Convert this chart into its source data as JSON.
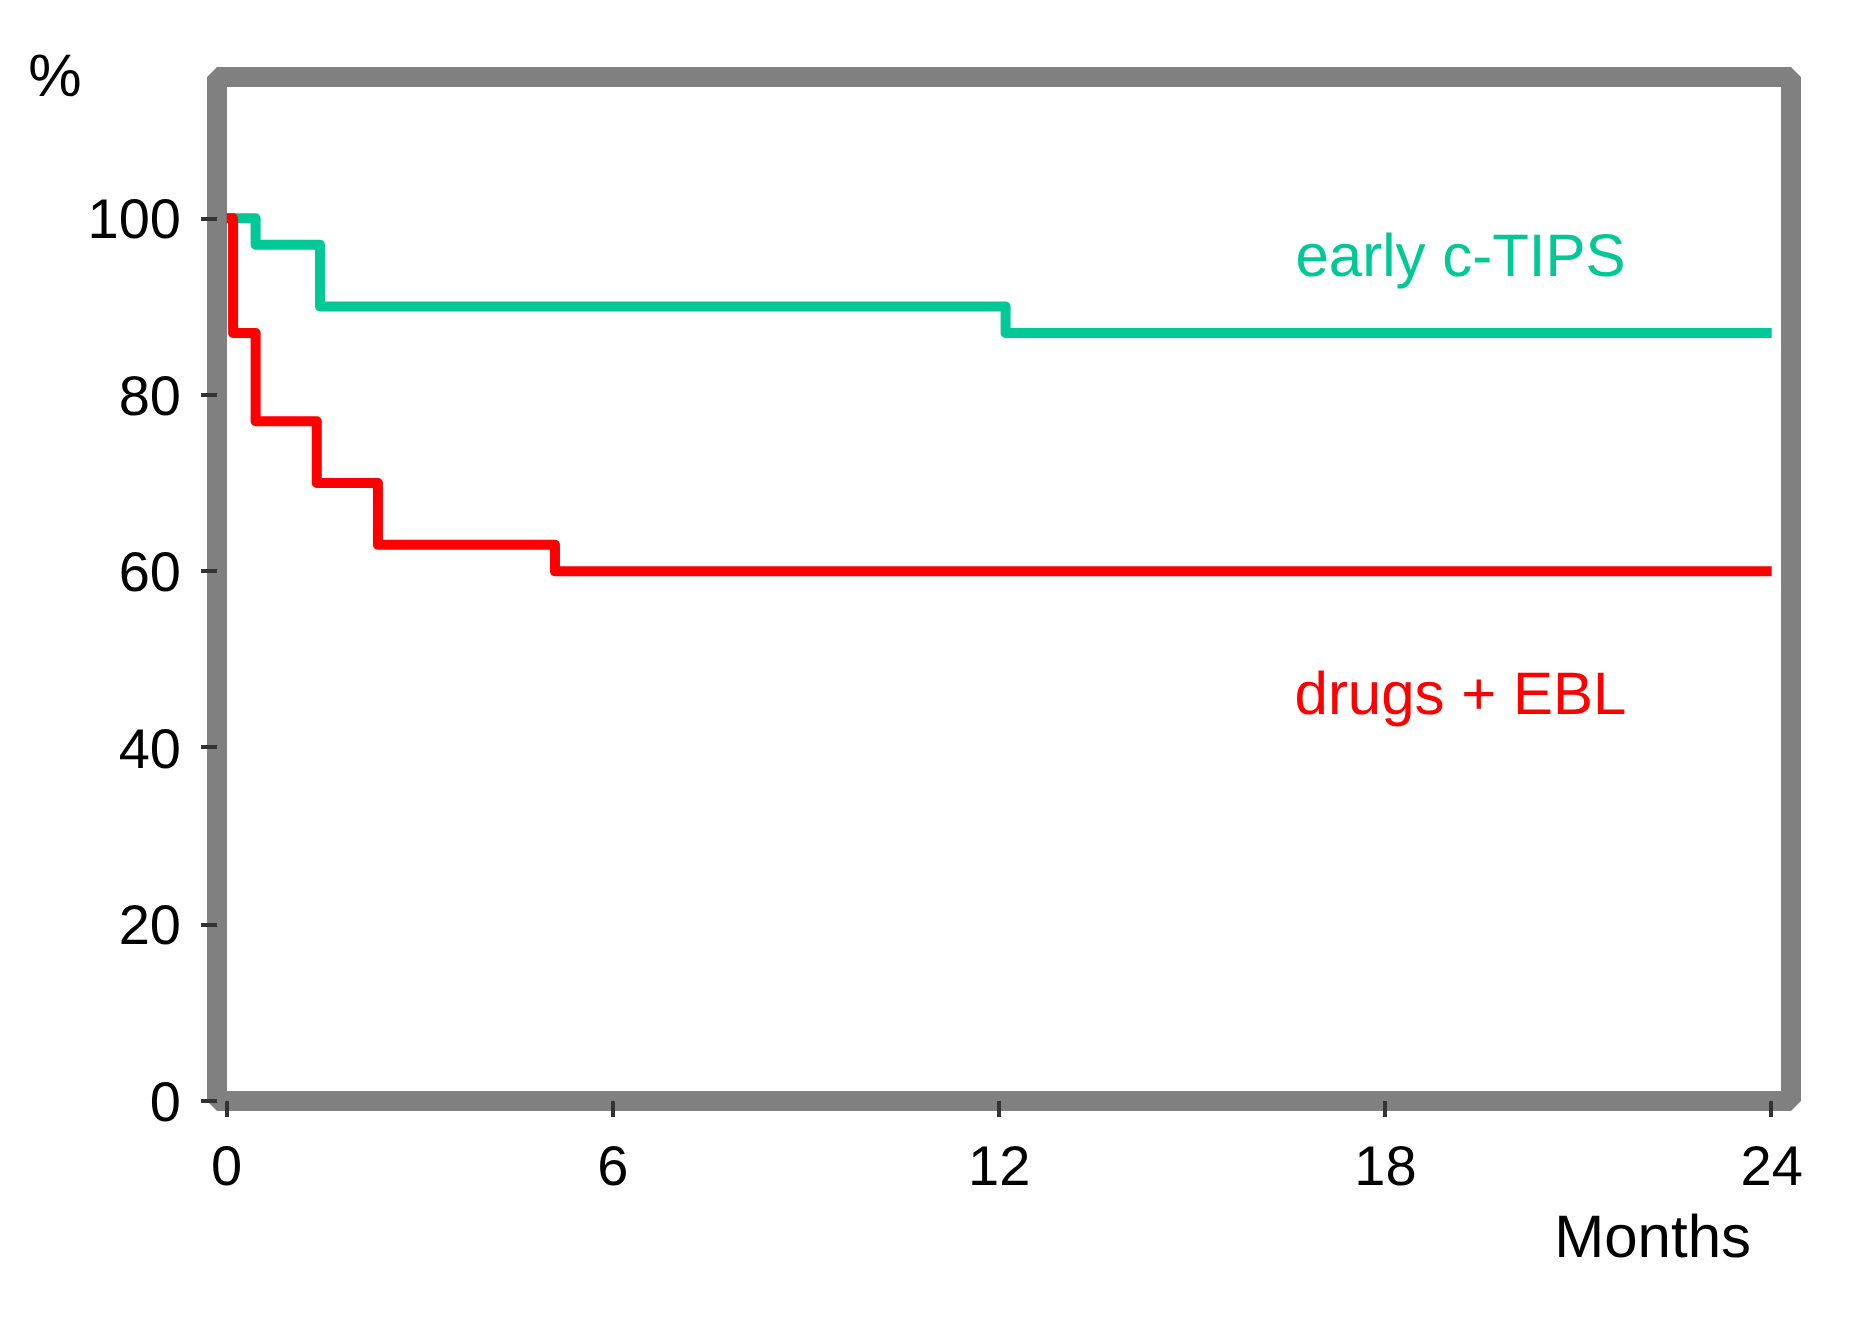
{
  "chart_data": {
    "type": "step",
    "xlabel": "Months",
    "ylabel": "%",
    "xlim": [
      -0.15,
      24.3
    ],
    "ylim": [
      0,
      116
    ],
    "xticks": [
      0,
      6,
      12,
      18,
      24
    ],
    "yticks": [
      0,
      20,
      40,
      60,
      80,
      100
    ],
    "grid": false,
    "legend": false,
    "series": [
      {
        "name": "early c-TIPS",
        "color": "#00c896",
        "x": [
          0,
          0.45,
          1.45,
          12.1,
          24
        ],
        "values": [
          100,
          97,
          90,
          87,
          87
        ]
      },
      {
        "name": "drugs + EBL",
        "color": "#ff0000",
        "x": [
          0,
          0.1,
          0.45,
          1.4,
          2.35,
          5.1,
          24
        ],
        "values": [
          100,
          87,
          77,
          70,
          63,
          60,
          60
        ]
      }
    ]
  }
}
